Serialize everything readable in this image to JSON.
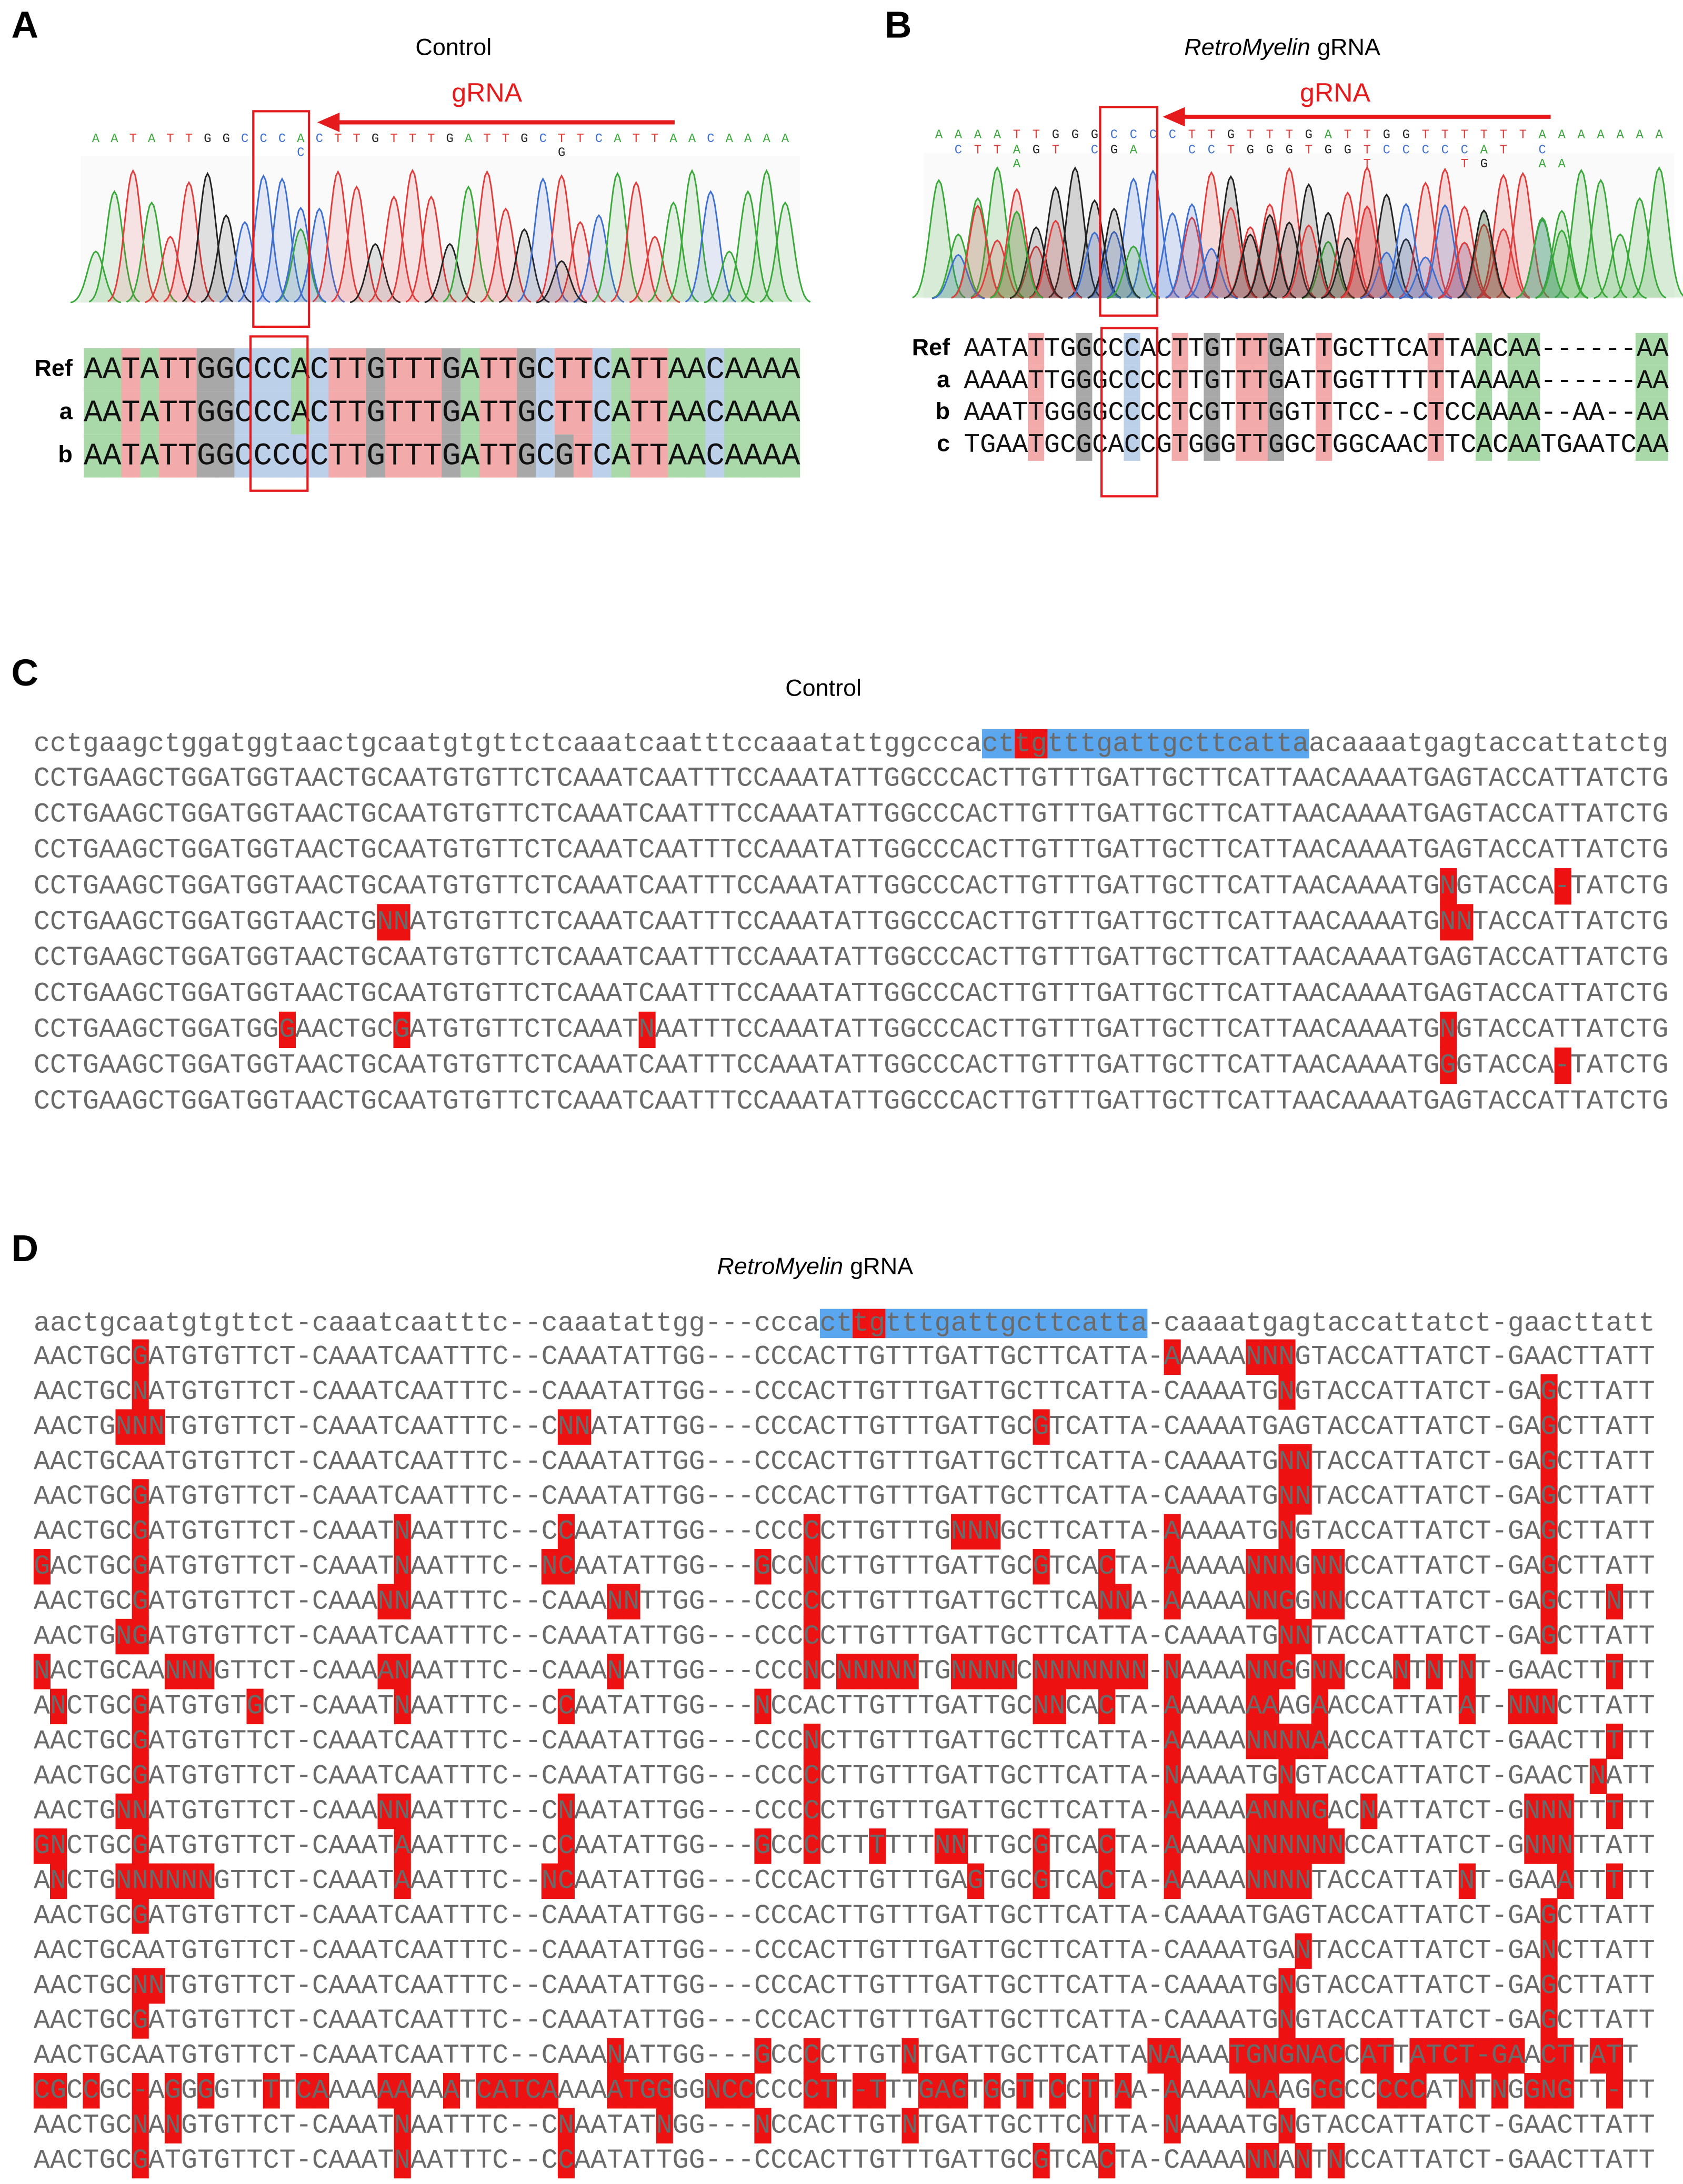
{
  "panels": [
    {
      "label": "A",
      "title": [
        "Control"
      ],
      "grna_label": "gRNA",
      "base_calls": [
        "AATATTGGCCCACTTGTTTGATTGCTTCATTAACAAAA",
        "           C             G            "
      ],
      "alignment": {
        "names": [
          "Ref",
          "a",
          "b"
        ],
        "sequences": [
          "AATATTGGCCCACTTGTTTGATTGCTTCATTAACAAAA",
          "AATATTGGCCCACTTGTTTGATTGCTTCATTAACAAAA",
          "AATATTGGCCCCCTTGTTTGATTGCGTCATTAACAAAA"
        ]
      }
    },
    {
      "label": "B",
      "title": [
        "RetroMyelin",
        "gRNA"
      ],
      "grna_label": "gRNA",
      "base_calls": [
        "AAAATTGGGCCCCTTGTTTGATTGGTTTTTTAAAAAAA",
        " CTTAGT CGA  CCTGGGTGGTCCCCCAT C      ",
        "    A                 T    TG  AA     "
      ],
      "alignment": {
        "names": [
          "Ref",
          "a",
          "b",
          "c"
        ],
        "sequences": [
          "AATATTGGCCCACTTGTTTGATTGCTTCATTAACAA------AA",
          "AAAATTGGGCCCCTTGTTTGATTGGTTTTTTAAAAA------AA",
          "AAATTGGGGCCCCTCGTTTGGTTTCC--CTCCAAAA--AA--AA",
          "TGAATGCGCACCGTGGGTTGGCTGGCAACTTCACAATGAATCAA"
        ]
      }
    },
    {
      "label": "C",
      "title": [
        "Control"
      ],
      "reference": "cctgaagctggatggtaactgcaatgtgttctcaaatcaatttccaaatattggcccacttgtttgattgcttcattaacaaaatgagtaccattatctg",
      "reads": [
        "CCTGAAGCTGGATGGTAACTGCAATGTGTTCTCAAATCAATTTCCAAATATTGGCCCACTTGTTTGATTGCTTCATTAACAAAATGAGTACCATTATCTG",
        "CCTGAAGCTGGATGGTAACTGCAATGTGTTCTCAAATCAATTTCCAAATATTGGCCCACTTGTTTGATTGCTTCATTAACAAAATGAGTACCATTATCTG",
        "CCTGAAGCTGGATGGTAACTGCAATGTGTTCTCAAATCAATTTCCAAATATTGGCCCACTTGTTTGATTGCTTCATTAACAAAATGAGTACCATTATCTG",
        "CCTGAAGCTGGATGGTAACTGCAATGTGTTCTCAAATCAATTTCCAAATATTGGCCCACTTGTTTGATTGCTTCATTAACAAAATGNGTACCA-TATCTG",
        "CCTGAAGCTGGATGGTAACTGNNATGTGTTCTCAAATCAATTTCCAAATATTGGCCCACTTGTTTGATTGCTTCATTAACAAAATGNNTACCATTATCTG",
        "CCTGAAGCTGGATGGTAACTGCAATGTGTTCTCAAATCAATTTCCAAATATTGGCCCACTTGTTTGATTGCTTCATTAACAAAATGAGTACCATTATCTG",
        "CCTGAAGCTGGATGGTAACTGCAATGTGTTCTCAAATCAATTTCCAAATATTGGCCCACTTGTTTGATTGCTTCATTAACAAAATGAGTACCATTATCTG",
        "CCTGAAGCTGGATGGGAACTGCGATGTGTTCTCAAATNAATTTCCAAATATTGGCCCACTTGTTTGATTGCTTCATTAACAAAATGNGTACCATTATCTG",
        "CCTGAAGCTGGATGGTAACTGCAATGTGTTCTCAAATCAATTTCCAAATATTGGCCCACTTGTTTGATTGCTTCATTAACAAAATGGGTACCA-TATCTG",
        "CCTGAAGCTGGATGGTAACTGCAATGTGTTCTCAAATCAATTTCCAAATATTGGCCCACTTGTTTGATTGCTTCATTAACAAAATGAGTACCATTATCTG"
      ]
    },
    {
      "label": "D",
      "title": [
        "RetroMyelin",
        "gRNA"
      ],
      "reference": "aactgcaatgtgttct-caaatcaatttc--caaatattgg---cccacttgtttgattgcttcatta-caaaatgagtaccattatct-gaacttatt",
      "reads": [
        "AACTGCGATGTGTTCT-CAAATCAATTTC--CAAATATTGG---CCCACTTGTTTGATTGCTTCATTA-AAAAANNNGTACCATTATCT-GAACTTATT",
        "AACTGCNATGTGTTCT-CAAATCAATTTC--CAAATATTGG---CCCACTTGTTTGATTGCTTCATTA-CAAAATGNGTACCATTATCT-GAGCTTATT",
        "AACTGNNNTGTGTTCT-CAAATCAATTTC--CNNATATTGG---CCCACTTGTTTGATTGCGTCATTA-CAAAATGAGTACCATTATCT-GAGCTTATT",
        "AACTGCAATGTGTTCT-CAAATCAATTTC--CAAATATTGG---CCCACTTGTTTGATTGCTTCATTA-CAAAATGNNTACCATTATCT-GAGCTTATT",
        "AACTGCGATGTGTTCT-CAAATCAATTTC--CAAATATTGG---CCCACTTGTTTGATTGCTTCATTA-CAAAATGNNTACCATTATCT-GAGCTTATT",
        "AACTGCGATGTGTTCT-CAAATNAATTTC--CCAATATTGG---CCCCCTTGTTTGNNNGCTTCATTA-AAAAATGNGTACCATTATCT-GAGCTTATT",
        "GACTGCGATGTGTTCT-CAAATNAATTTC--NCAATATTGG---GCCNCTTGTTTGATTGCGTCACTA-AAAAANNNGNNCCATTATCT-GAGCTTATT",
        "AACTGCGATGTGTTCT-CAAANNAATTTC--CAAANNTTGG---CCCCCTTGTTTGATTGCTTCANNA-AAAAANNGGNNCCATTATCT-GAGCTTNTT",
        "AACTGNGATGTGTTCT-CAAATCAATTTC--CAAATATTGG---CCCCCTTGTTTGATTGCTTCATTA-CAAAATGNNTACCATTATCT-GAGCTTATT",
        "NACTGCAANNNGTTCT-CAAAANAATTTC--CAAANATTGG---CCCNCNNNNNTGNNNNCNNNNNNN-NAAAANNGGNNCCANTNTNT-GAACTTTTT",
        "ANCTGCGATGTGTGCT-CAAATNAATTTC--CCAATATTGG---NCCACTTGTTTGATTGCNNCACTA-AAAAAAAAGAACCATTATAT-NNNCTTATT",
        "AACTGCGATGTGTTCT-CAAATCAATTTC--CAAATATTGG---CCCNCTTGTTTGATTGCTTCATTA-AAAAANNNNAACCATTATCT-GAACTTTTT",
        "AACTGCGATGTGTTCT-CAAATCAATTTC--CAAATATTGG---CCCCCTTGTTTGATTGCTTCATTA-NAAAATGNGTACCATTATCT-GAACTNATT",
        "AACTGNNATGTGTTCT-CAAANNAATTTC--CNAATATTGG---CCCCCTTGTTTGATTGCTTCATTA-AAAAAANNNGACNATTATCT-GNNNTTTTT",
        "GNCTGCGATGTGTTCT-CAAATAAATTTC--CCAATATTGG---GCCCCTTTTTTNNTTGCGTCACTA-AAAAANNNNNNCCATTATCT-GNNNTTATT",
        "ANCTGNNNNNNGTTCT-CAAATAAATTTC--NCAATATTGG---CCCACTTGTTTGAGTGCGTCACTA-AAAAANNNNTACCATTATNT-GAAATTTTT",
        "AACTGCGATGTGTTCT-CAAATCAATTTC--CAAATATTGG---CCCACTTGTTTGATTGCTTCATTA-CAAAATGAGTACCATTATCT-GAGCTTATT",
        "AACTGCAATGTGTTCT-CAAATCAATTTC--CAAATATTGG---CCCACTTGTTTGATTGCTTCATTA-CAAAATGANTACCATTATCT-GANCTTATT",
        "AACTGCNNTGTGTTCT-CAAATCAATTTC--CAAATATTGG---CCCACTTGTTTGATTGCTTCATTA-CAAAATGNGTACCATTATCT-GAGCTTATT",
        "AACTGCGATGTGTTCT-CAAATCAATTTC--CAAATATTGG---CCCACTTGTTTGATTGCTTCATTA-CAAAATGNGTACCATTATCT-GAGCTTATT",
        "AACTGCAATGTGTTCT-CAAATCAATTTC--CAAANATTGG---GCCCCTTGTNTGATTGCTTCATTANAAAATGNGNACCATTATCT-GAACTTATT",
        "CGCCGC-AGGGGTTTTCAAAAAAAAATCATCAAAAATGGGGNCCCCCCTT-TTTGAGTGGTTCCTTAA-AAAAANAAGGGCCCCCATNTNGGNGTT-TT",
        "AACTGCNANGTGTTCT-CAAATNAATTTC--CNAATATNGG---NCCACTTGTNTGATTGCTTCNTTA-NAAAATGNGTACCATTATCT-GAACTTATT",
        "AACTGCGATGTGTTCT-CAAATNAATTTC--CCAATATTGG---CCCACTTGTTTGATTGCGTCACTA-CAAAANNANTNCCATTATCT-GAACTTATT"
      ]
    }
  ]
}
